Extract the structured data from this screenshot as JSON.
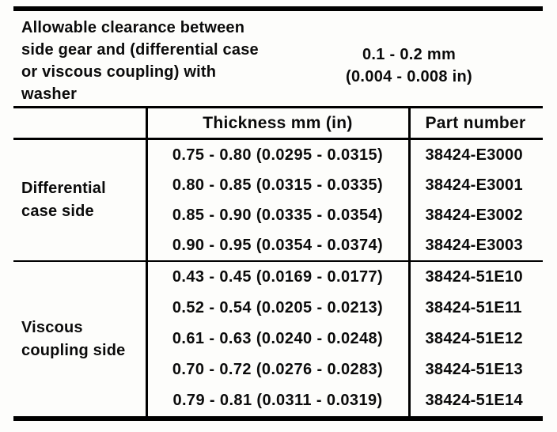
{
  "page": {
    "background": "#fdfdfb",
    "text_color": "#0b0b0b",
    "rule_color": "#000000"
  },
  "clearance_note": {
    "label_lines": [
      "Allowable clearance between",
      "side gear and (differential case",
      "or viscous coupling) with",
      "washer"
    ],
    "value_lines": [
      "0.1 - 0.2 mm",
      "(0.004 - 0.008 in)"
    ]
  },
  "table": {
    "columns": [
      "",
      "Thickness mm (in)",
      "Part number"
    ],
    "sections": [
      {
        "label_lines": [
          "Differential",
          "case side"
        ],
        "rows": [
          {
            "thickness": "0.75 - 0.80 (0.0295 - 0.0315)",
            "part_number": "38424-E3000"
          },
          {
            "thickness": "0.80 - 0.85 (0.0315 - 0.0335)",
            "part_number": "38424-E3001"
          },
          {
            "thickness": "0.85 - 0.90 (0.0335 - 0.0354)",
            "part_number": "38424-E3002"
          },
          {
            "thickness": "0.90 - 0.95 (0.0354 - 0.0374)",
            "part_number": "38424-E3003"
          }
        ]
      },
      {
        "label_lines": [
          "Viscous",
          "coupling side"
        ],
        "rows": [
          {
            "thickness": "0.43 - 0.45 (0.0169 - 0.0177)",
            "part_number": "38424-51E10"
          },
          {
            "thickness": "0.52 - 0.54 (0.0205 - 0.0213)",
            "part_number": "38424-51E11"
          },
          {
            "thickness": "0.61 - 0.63 (0.0240 - 0.0248)",
            "part_number": "38424-51E12"
          },
          {
            "thickness": "0.70 - 0.72 (0.0276 - 0.0283)",
            "part_number": "38424-51E13"
          },
          {
            "thickness": "0.79 - 0.81 (0.0311 - 0.0319)",
            "part_number": "38424-51E14"
          }
        ]
      }
    ]
  }
}
